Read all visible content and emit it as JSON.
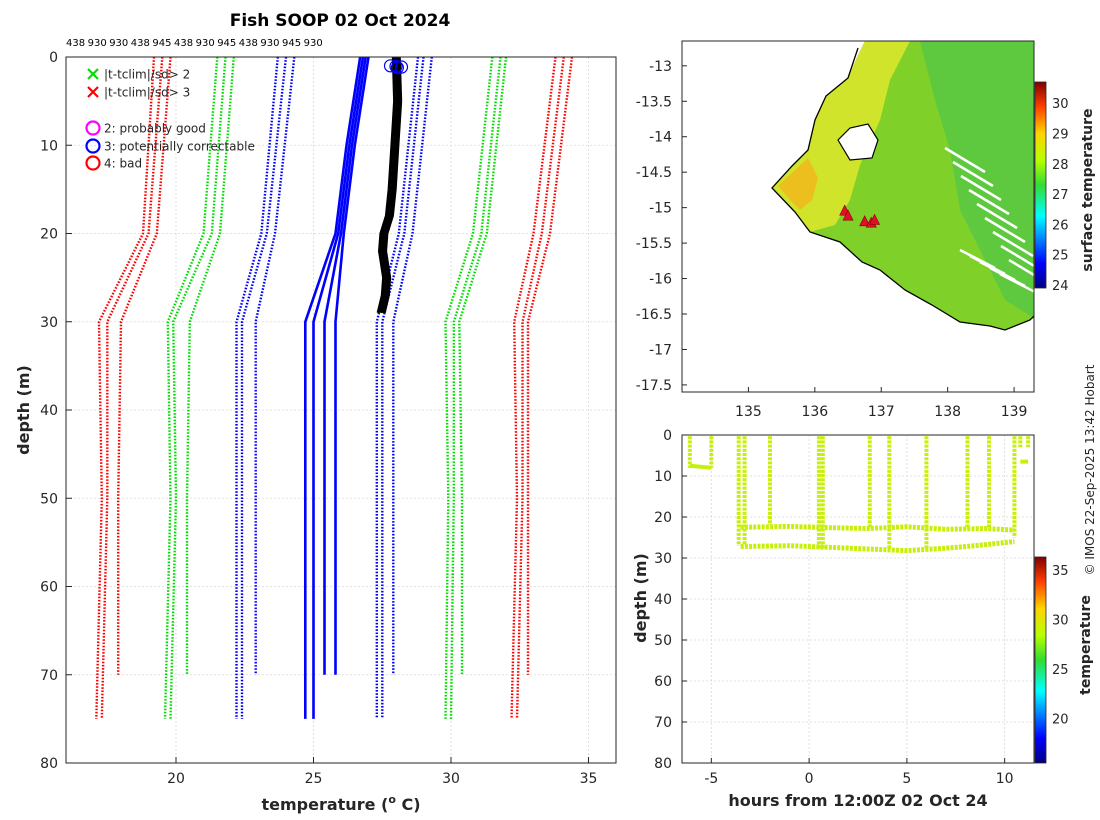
{
  "title": "Fish SOOP 02 Oct 2024",
  "credit": "© IMOS 22-Sep-2025 13:42 Hobart",
  "chart_data": [
    {
      "type": "line",
      "name": "temperature-depth-profile",
      "xlabel": "temperature (° C)",
      "xlabel_sup": "o",
      "xlabel_pre": "temperature (",
      "xlabel_post": " C)",
      "ylabel": "depth (m)",
      "xlim": [
        16,
        36
      ],
      "ylim": [
        0,
        80
      ],
      "xticks": [
        20,
        25,
        30,
        35
      ],
      "yticks": [
        0,
        10,
        20,
        30,
        40,
        50,
        60,
        70,
        80
      ],
      "top_labels": [
        "438",
        "930",
        "930",
        "438",
        "945",
        "438",
        "930",
        "945",
        "438",
        "930",
        "945",
        "930"
      ],
      "legend": [
        {
          "marker": "x",
          "color": "#00dd00",
          "label": "|t-tclim|/sd> 2"
        },
        {
          "marker": "x",
          "color": "#ff0000",
          "label": "|t-tclim|/sd> 3"
        },
        {
          "marker": "o",
          "color": "#ff00ff",
          "label": "2: probably good"
        },
        {
          "marker": "o",
          "color": "#0000ff",
          "label": "3: potentially correctable"
        },
        {
          "marker": "o",
          "color": "#ff0000",
          "label": "4: bad"
        }
      ],
      "climatology": [
        {
          "color": "#ff0000",
          "depths": [
            0,
            20,
            30,
            50,
            75
          ],
          "temps": [
            [
              19.2,
              18.8,
              17.2,
              17.3,
              17.1
            ],
            [
              19.5,
              19.0,
              17.5,
              17.5,
              17.3
            ],
            [
              19.8,
              19.3,
              18.0,
              17.9,
              17.9
            ],
            [
              33.8,
              33.0,
              32.3,
              32.4,
              32.2
            ],
            [
              34.1,
              33.3,
              32.6,
              32.6,
              32.4
            ],
            [
              34.4,
              33.6,
              32.8,
              32.8,
              32.8
            ]
          ],
          "ends": [
            75,
            75,
            70,
            75,
            75,
            70
          ]
        },
        {
          "color": "#00dd00",
          "depths": [
            0,
            20,
            30,
            50,
            75
          ],
          "temps": [
            [
              21.5,
              21.0,
              19.7,
              19.8,
              19.6
            ],
            [
              21.8,
              21.3,
              19.9,
              20.0,
              19.8
            ],
            [
              22.1,
              21.6,
              20.5,
              20.4,
              20.4
            ],
            [
              31.5,
              30.8,
              29.8,
              29.9,
              29.8
            ],
            [
              31.8,
              31.1,
              30.1,
              30.1,
              30.0
            ],
            [
              32.0,
              31.3,
              30.3,
              30.4,
              30.4
            ]
          ],
          "ends": [
            75,
            75,
            70,
            75,
            75,
            70
          ]
        },
        {
          "color": "#0000ff",
          "depths": [
            0,
            20,
            30,
            50,
            75
          ],
          "temps": [
            [
              23.7,
              23.1,
              22.2,
              22.2,
              22.2
            ],
            [
              24.0,
              23.3,
              22.4,
              22.4,
              22.4
            ],
            [
              24.3,
              23.6,
              22.9,
              22.9,
              22.9
            ],
            [
              28.8,
              28.1,
              27.3,
              27.3,
              27.3
            ],
            [
              29.0,
              28.3,
              27.5,
              27.5,
              27.5
            ],
            [
              29.3,
              28.6,
              27.9,
              27.9,
              27.9
            ]
          ],
          "ends": [
            75,
            75,
            70,
            75,
            75,
            70
          ]
        }
      ],
      "observed_blue": {
        "color": "#0000ff",
        "depths": [
          0,
          10,
          20,
          30,
          75
        ],
        "temps": [
          [
            26.7,
            26.2,
            25.8,
            24.7,
            24.7
          ],
          [
            26.8,
            26.3,
            25.9,
            25.0,
            25.0
          ],
          [
            26.9,
            26.4,
            26.0,
            25.4,
            25.4
          ],
          [
            27.0,
            26.5,
            26.1,
            25.8,
            25.8
          ]
        ],
        "ends": [
          75,
          75,
          70,
          70
        ]
      },
      "observed_black": {
        "color": "#000000",
        "depths": [
          0,
          5,
          10,
          15,
          18,
          20,
          22,
          25,
          27,
          29
        ],
        "temps": [
          28.0,
          28.05,
          27.95,
          27.85,
          27.75,
          27.55,
          27.5,
          27.65,
          27.6,
          27.45
        ]
      },
      "flag_markers": {
        "color": "#0000ff",
        "temp": 28.0,
        "depth": 1
      }
    },
    {
      "type": "heatmap",
      "name": "surface-temperature-map",
      "colorbar_label": "surface temperature",
      "xlim": [
        134,
        139.3
      ],
      "ylim": [
        -17.6,
        -12.65
      ],
      "xticks": [
        135,
        136,
        137,
        138,
        139
      ],
      "yticks": [
        -13,
        -13.5,
        -14,
        -14.5,
        -15,
        -15.5,
        -16,
        -16.5,
        -17,
        -17.5
      ],
      "ytick_labels": [
        "-13",
        "-13.5",
        "-14",
        "-14.5",
        "-15",
        "-15.5",
        "-16",
        "-16.5",
        "-17",
        "-17.5"
      ],
      "colorbar_ticks": [
        24,
        25,
        26,
        27,
        28,
        29,
        30
      ],
      "colorbar_range": [
        23.9,
        30.7
      ],
      "stations": [
        [
          136.45,
          -15.05
        ],
        [
          136.5,
          -15.12
        ],
        [
          136.75,
          -15.2
        ],
        [
          136.85,
          -15.22
        ],
        [
          136.9,
          -15.18
        ]
      ]
    },
    {
      "type": "scatter",
      "name": "depth-time-section",
      "xlabel": "hours from 12:00Z 02 Oct 24",
      "ylabel": "depth (m)",
      "colorbar_label": "temperature",
      "xlim": [
        -6.5,
        11.5
      ],
      "ylim": [
        0,
        80
      ],
      "xticks": [
        -5,
        0,
        5,
        10
      ],
      "yticks": [
        0,
        10,
        20,
        30,
        40,
        50,
        60,
        70,
        80
      ],
      "colorbar_ticks": [
        20,
        25,
        30,
        35
      ],
      "colorbar_range": [
        15.5,
        36.3
      ],
      "point_color": "#c6f00a",
      "casts": [
        {
          "t": -6.1,
          "max_depth": 8
        },
        {
          "t": -5.0,
          "max_depth": 8
        },
        {
          "t": -3.6,
          "max_depth": 27
        },
        {
          "t": -3.3,
          "max_depth": 27
        },
        {
          "t": -2.0,
          "max_depth": 22
        },
        {
          "t": 0.5,
          "max_depth": 28
        },
        {
          "t": 0.7,
          "max_depth": 28
        },
        {
          "t": 3.1,
          "max_depth": 23
        },
        {
          "t": 4.1,
          "max_depth": 28
        },
        {
          "t": 6.0,
          "max_depth": 28
        },
        {
          "t": 8.1,
          "max_depth": 23
        },
        {
          "t": 9.2,
          "max_depth": 23
        },
        {
          "t": 10.5,
          "max_depth": 25
        },
        {
          "t": 10.8,
          "max_depth": 3
        },
        {
          "t": 11.2,
          "max_depth": 3
        }
      ],
      "layer_upper": [
        [
          -3.5,
          22.5
        ],
        [
          -1,
          22.3
        ],
        [
          1,
          22.6
        ],
        [
          3,
          22.8
        ],
        [
          5,
          22.4
        ],
        [
          7,
          23.0
        ],
        [
          9,
          22.8
        ],
        [
          10.5,
          23.2
        ]
      ],
      "layer_lower": [
        [
          -3.5,
          27.2
        ],
        [
          -1,
          27.0
        ],
        [
          1,
          27.4
        ],
        [
          3,
          27.8
        ],
        [
          5,
          28.2
        ],
        [
          7,
          27.6
        ],
        [
          8.5,
          27.0
        ],
        [
          10.5,
          26.0
        ]
      ]
    }
  ]
}
